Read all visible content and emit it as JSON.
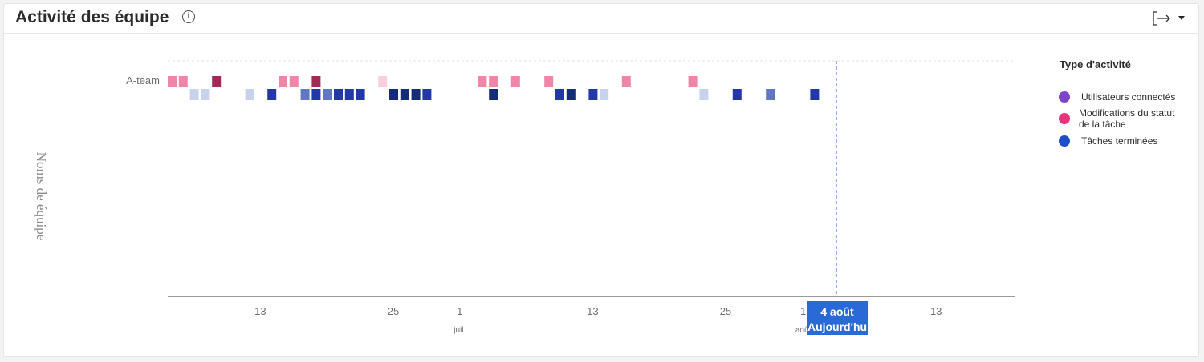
{
  "header": {
    "title": "Activité des équipe",
    "info_icon": "info-icon",
    "export_icon": "export-arrow-icon",
    "dropdown_icon": "caret-down-icon"
  },
  "colors": {
    "logged_in": "#7d43c9",
    "status_change": "#e8347a",
    "completed": "#1f4fc6",
    "today_badge": "#2a6ad8",
    "today_line": "#4a7fd4"
  },
  "chart_data": {
    "type": "scatter",
    "title": "",
    "ylabel": "Noms de équipe",
    "categories": [
      "A-team"
    ],
    "x_axis": {
      "tick_labels": [
        "13",
        "25",
        "1",
        "13",
        "25",
        "1",
        "13"
      ],
      "tick_dates": [
        "2024-06-13",
        "2024-06-25",
        "2024-07-01",
        "2024-07-13",
        "2024-07-25",
        "2024-08-01",
        "2024-08-13"
      ],
      "month_labels": [
        {
          "label": "juil.",
          "date": "2024-07-01"
        },
        {
          "label": "août",
          "date": "2024-08-01"
        }
      ],
      "range": [
        "2024-06-05",
        "2024-08-20"
      ]
    },
    "today": {
      "date": "2024-08-04",
      "label_top": "4  août",
      "label_bottom": "Aujourd'hu"
    },
    "legend": {
      "title": "Type d'activité",
      "position": "right",
      "items": [
        {
          "label": "Utilisateurs connectés",
          "color": "#7d43c9"
        },
        {
          "label": "Modifications du statut de la tâche",
          "color": "#e8347a"
        },
        {
          "label": "Tâches terminées",
          "color": "#1f4fc6"
        }
      ]
    },
    "series": [
      {
        "name": "Modifications du statut de la tâche",
        "row": 0,
        "points": [
          {
            "date": "2024-06-05",
            "intensity": 2
          },
          {
            "date": "2024-06-06",
            "intensity": 2
          },
          {
            "date": "2024-06-09",
            "intensity": 4
          },
          {
            "date": "2024-06-15",
            "intensity": 2
          },
          {
            "date": "2024-06-16",
            "intensity": 2
          },
          {
            "date": "2024-06-18",
            "intensity": 4
          },
          {
            "date": "2024-06-24",
            "intensity": 1
          },
          {
            "date": "2024-07-03",
            "intensity": 2
          },
          {
            "date": "2024-07-04",
            "intensity": 2
          },
          {
            "date": "2024-07-06",
            "intensity": 2
          },
          {
            "date": "2024-07-09",
            "intensity": 2
          },
          {
            "date": "2024-07-16",
            "intensity": 2
          },
          {
            "date": "2024-07-22",
            "intensity": 2
          }
        ]
      },
      {
        "name": "Tâches terminées",
        "row": 0,
        "points": [
          {
            "date": "2024-06-07",
            "intensity": 1
          },
          {
            "date": "2024-06-08",
            "intensity": 1
          },
          {
            "date": "2024-06-12",
            "intensity": 1
          },
          {
            "date": "2024-06-14",
            "intensity": 3
          },
          {
            "date": "2024-06-17",
            "intensity": 2
          },
          {
            "date": "2024-06-18",
            "intensity": 3
          },
          {
            "date": "2024-06-19",
            "intensity": 2
          },
          {
            "date": "2024-06-20",
            "intensity": 3
          },
          {
            "date": "2024-06-21",
            "intensity": 3
          },
          {
            "date": "2024-06-22",
            "intensity": 3
          },
          {
            "date": "2024-06-25",
            "intensity": 4
          },
          {
            "date": "2024-06-26",
            "intensity": 4
          },
          {
            "date": "2024-06-27",
            "intensity": 4
          },
          {
            "date": "2024-06-28",
            "intensity": 3
          },
          {
            "date": "2024-07-04",
            "intensity": 4
          },
          {
            "date": "2024-07-10",
            "intensity": 3
          },
          {
            "date": "2024-07-11",
            "intensity": 4
          },
          {
            "date": "2024-07-13",
            "intensity": 3
          },
          {
            "date": "2024-07-14",
            "intensity": 1
          },
          {
            "date": "2024-07-23",
            "intensity": 1
          },
          {
            "date": "2024-07-26",
            "intensity": 3
          },
          {
            "date": "2024-07-29",
            "intensity": 2
          },
          {
            "date": "2024-08-02",
            "intensity": 3
          }
        ]
      }
    ]
  }
}
